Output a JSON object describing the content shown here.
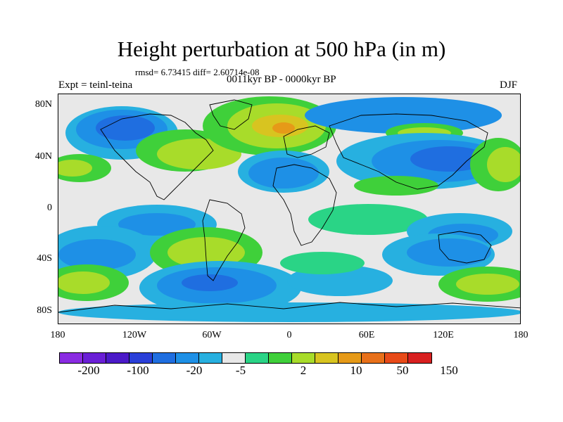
{
  "title": "Height perturbation at 500 hPa (in m)",
  "stats": "rmsd= 6.73415 diff= 2.60714e-08",
  "period": "0011kyr BP - 0000kyr BP",
  "experiment": "Expt = teinl-teina",
  "season": "DJF",
  "axes": {
    "x_ticks": [
      "180",
      "120W",
      "60W",
      "0",
      "60E",
      "120E",
      "180"
    ],
    "y_ticks": [
      "80N",
      "40N",
      "0",
      "40S",
      "80S"
    ]
  },
  "colorbar": {
    "colors": [
      "#8a2be2",
      "#6a1fd6",
      "#4b1ac8",
      "#2a3fd8",
      "#1f6ee0",
      "#1e90e6",
      "#27b0e0",
      "#e8e8e8",
      "#2ad486",
      "#3fd03a",
      "#a8dc2a",
      "#d8c420",
      "#e69a18",
      "#e8701a",
      "#e84a18",
      "#d82020"
    ],
    "labels": [
      "-200",
      "-100",
      "-20",
      "-5",
      "2",
      "10",
      "50",
      "150"
    ]
  },
  "field_colors": {
    "neutral": "#e8e8e8",
    "lightblue": "#27b0e0",
    "blue": "#1e90e6",
    "darkblue": "#1f6ee0",
    "deepblue": "#2a3fd8",
    "lightgreen": "#2ad486",
    "green": "#3fd03a",
    "yellowgreen": "#a8dc2a",
    "yellow": "#d8c420",
    "orange": "#e69a18"
  }
}
